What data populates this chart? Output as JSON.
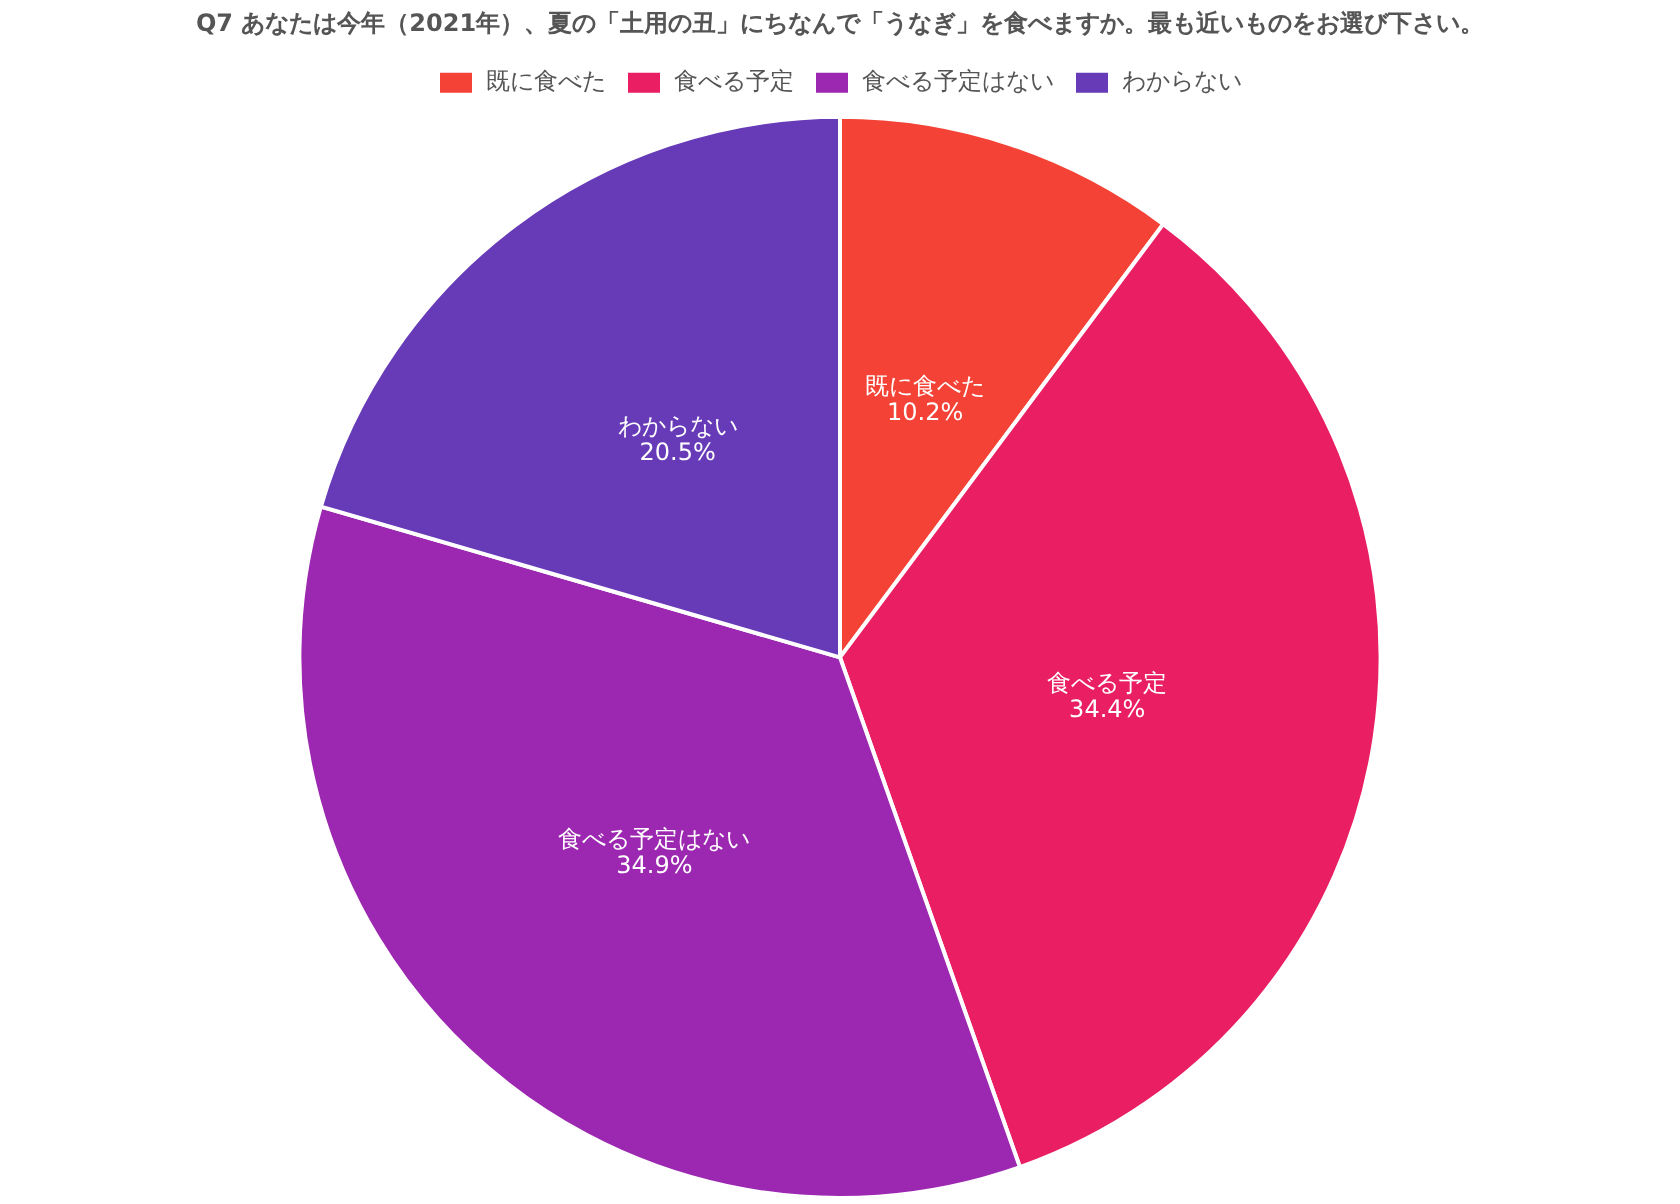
{
  "chart_data": {
    "type": "pie",
    "title": "Q7 あなたは今年（2021年）、夏の「土用の丑」にちなんで「うなぎ」を食べますか。最も近いものをお選び下さい。",
    "categories": [
      "既に食べた",
      "食べる予定",
      "食べる予定はない",
      "わからない"
    ],
    "values": [
      10.2,
      34.4,
      34.9,
      20.5
    ],
    "colors": [
      "#f44336",
      "#e91e63",
      "#9c27b0",
      "#673ab7"
    ],
    "value_labels": [
      "10.2%",
      "34.4%",
      "34.9%",
      "20.5%"
    ],
    "legend": "top"
  }
}
